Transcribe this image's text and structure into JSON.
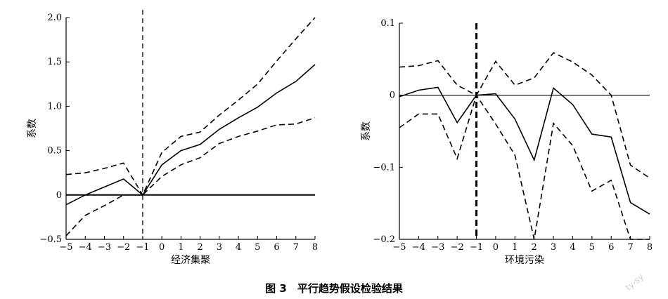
{
  "figure": {
    "caption": "图 3　平行趋势假设检验结果",
    "watermark": "ty-sy"
  },
  "chart_data": [
    {
      "type": "line",
      "xlabel": "经济集聚",
      "ylabel": "系数",
      "x": [
        -5,
        -4,
        -3,
        -2,
        -1,
        0,
        1,
        2,
        3,
        4,
        5,
        6,
        7,
        8
      ],
      "xticks": [
        "−5",
        "−4",
        "−3",
        "−2",
        "−1",
        "0",
        "1",
        "2",
        "3",
        "4",
        "5",
        "6",
        "7",
        "8"
      ],
      "xlim": [
        -5,
        8
      ],
      "ylim": [
        -0.5,
        2.0
      ],
      "yticks": [
        -0.5,
        0,
        0.5,
        1.0,
        1.5,
        2.0
      ],
      "ytick_labels": [
        "−0.5",
        "0",
        "0.5",
        "1.0",
        "1.5",
        "2.0"
      ],
      "reference_line_y": 0,
      "event_line_x": -1,
      "grid": false,
      "series": [
        {
          "style": "solid",
          "color": "#000000",
          "values": [
            -0.11,
            0.0,
            0.09,
            0.18,
            0.0,
            0.34,
            0.5,
            0.57,
            0.74,
            0.87,
            0.99,
            1.15,
            1.28,
            1.47
          ]
        },
        {
          "style": "dashed",
          "color": "#000000",
          "values": [
            0.23,
            0.25,
            0.3,
            0.36,
            0.0,
            0.48,
            0.66,
            0.71,
            0.9,
            1.07,
            1.25,
            1.51,
            1.76,
            2.08
          ]
        },
        {
          "style": "dashed",
          "color": "#000000",
          "values": [
            -0.46,
            -0.23,
            -0.12,
            0.0,
            0.0,
            0.21,
            0.34,
            0.42,
            0.58,
            0.66,
            0.72,
            0.79,
            0.8,
            0.87
          ]
        }
      ]
    },
    {
      "type": "line",
      "xlabel": "环境污染",
      "ylabel": "系数",
      "x": [
        -5,
        -4,
        -3,
        -2,
        -1,
        0,
        1,
        2,
        3,
        4,
        5,
        6,
        7,
        8
      ],
      "xticks": [
        "−5",
        "−4",
        "−3",
        "−2",
        "−1",
        "0",
        "1",
        "2",
        "3",
        "4",
        "5",
        "6",
        "7",
        "8"
      ],
      "xlim": [
        -5,
        8
      ],
      "ylim": [
        -0.2,
        0.1
      ],
      "yticks": [
        -0.2,
        -0.1,
        0,
        0.1
      ],
      "ytick_labels": [
        "−0.2",
        "−0.1",
        "0",
        "0.1"
      ],
      "reference_line_y": 0,
      "event_line_x": -1,
      "grid": false,
      "series": [
        {
          "style": "solid",
          "color": "#000000",
          "values": [
            -0.002,
            0.007,
            0.011,
            -0.038,
            0.0,
            0.002,
            -0.033,
            -0.09,
            0.01,
            -0.013,
            -0.054,
            -0.058,
            -0.149,
            -0.165
          ]
        },
        {
          "style": "dashed",
          "color": "#000000",
          "values": [
            0.039,
            0.041,
            0.048,
            0.014,
            0.0,
            0.047,
            0.014,
            0.024,
            0.059,
            0.046,
            0.028,
            0.0,
            -0.097,
            -0.115
          ]
        },
        {
          "style": "dashed",
          "color": "#000000",
          "values": [
            -0.045,
            -0.026,
            -0.026,
            -0.088,
            0.0,
            -0.04,
            -0.083,
            -0.2,
            -0.039,
            -0.07,
            -0.133,
            -0.118,
            -0.2,
            -0.2
          ]
        }
      ]
    }
  ]
}
